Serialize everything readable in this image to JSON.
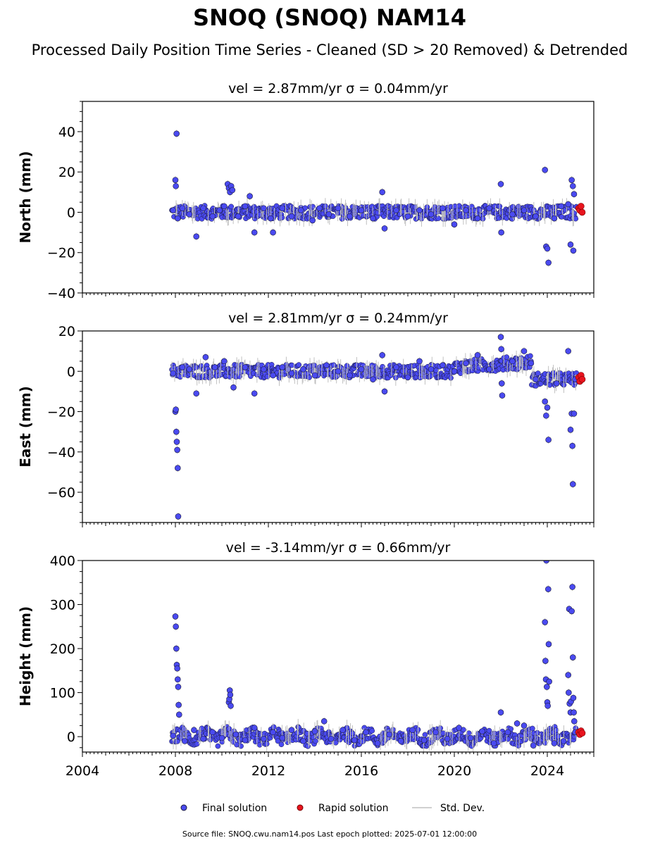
{
  "page": {
    "title": "SNOQ (SNOQ) NAM14",
    "subtitle": "Processed Daily Position Time Series - Cleaned (SD > 20 Removed) & Detrended",
    "source_prefix": "Source file: ",
    "source_file": "SNOQ.cwu.nam14.pos",
    "last_epoch_prefix": "Last epoch plotted: ",
    "last_epoch": "2025-07-01 12:00:00"
  },
  "colors": {
    "final": "#4a4af0",
    "rapid": "#e8141e",
    "stddev": "#c0c0c0",
    "edge": "#1a1a3a"
  },
  "chart_data": [
    {
      "type": "scatter",
      "id": "north",
      "panel_title": "vel = 2.87mm/yr   σ = 0.04mm/yr",
      "ylabel": "North (mm)",
      "xlim": [
        2004,
        2026
      ],
      "ylim": [
        -40,
        55
      ],
      "yticks": [
        -40,
        -20,
        0,
        20,
        40
      ],
      "ytick_labels": [
        "−40",
        "−20",
        "0",
        "20",
        "40"
      ],
      "xticks": [
        2004,
        2008,
        2012,
        2016,
        2020,
        2024
      ],
      "show_xtick_labels": false,
      "series": [
        {
          "name": "Final solution",
          "points": [
            [
              2007.9,
              1
            ],
            [
              2008.0,
              16
            ],
            [
              2008.02,
              13
            ],
            [
              2008.05,
              39
            ],
            [
              2008.1,
              -3
            ],
            [
              2008.3,
              2
            ],
            [
              2008.6,
              -1
            ],
            [
              2008.9,
              -12
            ],
            [
              2009.2,
              2
            ],
            [
              2009.6,
              -2
            ],
            [
              2009.9,
              1
            ],
            [
              2010.1,
              3
            ],
            [
              2010.25,
              14
            ],
            [
              2010.3,
              12
            ],
            [
              2010.35,
              10
            ],
            [
              2010.4,
              13
            ],
            [
              2010.45,
              11
            ],
            [
              2010.7,
              -2
            ],
            [
              2011.0,
              3
            ],
            [
              2011.2,
              8
            ],
            [
              2011.4,
              -10
            ],
            [
              2011.8,
              2
            ],
            [
              2012.1,
              -3
            ],
            [
              2012.2,
              -10
            ],
            [
              2012.6,
              2
            ],
            [
              2013.0,
              -2
            ],
            [
              2013.4,
              1
            ],
            [
              2013.9,
              -4
            ],
            [
              2014.2,
              2
            ],
            [
              2014.6,
              -1
            ],
            [
              2015.0,
              2
            ],
            [
              2015.5,
              -2
            ],
            [
              2016.0,
              1
            ],
            [
              2016.5,
              -3
            ],
            [
              2016.9,
              10
            ],
            [
              2017.0,
              -8
            ],
            [
              2017.5,
              1
            ],
            [
              2018.0,
              -2
            ],
            [
              2018.5,
              1
            ],
            [
              2019.0,
              -1
            ],
            [
              2019.5,
              2
            ],
            [
              2020.0,
              -6
            ],
            [
              2020.5,
              1
            ],
            [
              2021.0,
              -3
            ],
            [
              2021.5,
              2
            ],
            [
              2022.0,
              14
            ],
            [
              2022.02,
              -10
            ],
            [
              2022.5,
              -1
            ],
            [
              2023.0,
              1
            ],
            [
              2023.5,
              -2
            ],
            [
              2023.9,
              21
            ],
            [
              2023.95,
              -17
            ],
            [
              2024.0,
              -18
            ],
            [
              2024.05,
              -25
            ],
            [
              2024.3,
              -3
            ],
            [
              2024.6,
              3
            ],
            [
              2024.9,
              4
            ],
            [
              2025.0,
              -16
            ],
            [
              2025.05,
              16
            ],
            [
              2025.1,
              13
            ],
            [
              2025.12,
              -19
            ],
            [
              2025.15,
              9
            ]
          ]
        },
        {
          "name": "Rapid solution",
          "points": [
            [
              2025.35,
              2
            ],
            [
              2025.4,
              1
            ],
            [
              2025.45,
              3
            ],
            [
              2025.5,
              0
            ]
          ]
        }
      ]
    },
    {
      "type": "scatter",
      "id": "east",
      "panel_title": "vel = 2.81mm/yr   σ = 0.24mm/yr",
      "ylabel": "East (mm)",
      "xlim": [
        2004,
        2026
      ],
      "ylim": [
        -75,
        20
      ],
      "yticks": [
        -60,
        -40,
        -20,
        0,
        20
      ],
      "ytick_labels": [
        "−60",
        "−40",
        "−20",
        "0",
        "20"
      ],
      "xticks": [
        2004,
        2008,
        2012,
        2016,
        2020,
        2024
      ],
      "show_xtick_labels": false,
      "series": [
        {
          "name": "Final solution",
          "points": [
            [
              2007.9,
              -1
            ],
            [
              2008.0,
              -20
            ],
            [
              2008.02,
              -19
            ],
            [
              2008.04,
              -30
            ],
            [
              2008.06,
              -35
            ],
            [
              2008.08,
              -39
            ],
            [
              2008.1,
              -48
            ],
            [
              2008.12,
              -72
            ],
            [
              2008.3,
              2
            ],
            [
              2008.6,
              1
            ],
            [
              2008.9,
              -11
            ],
            [
              2009.3,
              7
            ],
            [
              2009.7,
              2
            ],
            [
              2010.1,
              5
            ],
            [
              2010.5,
              -8
            ],
            [
              2011.0,
              2
            ],
            [
              2011.4,
              -11
            ],
            [
              2011.8,
              1
            ],
            [
              2012.2,
              -2
            ],
            [
              2012.6,
              2
            ],
            [
              2013.0,
              -1
            ],
            [
              2013.5,
              1
            ],
            [
              2014.0,
              -2
            ],
            [
              2014.5,
              3
            ],
            [
              2015.0,
              0
            ],
            [
              2015.5,
              -2
            ],
            [
              2016.0,
              1
            ],
            [
              2016.5,
              -4
            ],
            [
              2016.9,
              8
            ],
            [
              2017.0,
              -10
            ],
            [
              2017.5,
              2
            ],
            [
              2018.0,
              -3
            ],
            [
              2018.5,
              5
            ],
            [
              2019.0,
              1
            ],
            [
              2019.5,
              3
            ],
            [
              2020.0,
              0
            ],
            [
              2020.5,
              4
            ],
            [
              2021.0,
              8
            ],
            [
              2021.5,
              1
            ],
            [
              2022.0,
              17
            ],
            [
              2022.02,
              11
            ],
            [
              2022.04,
              -6
            ],
            [
              2022.06,
              -12
            ],
            [
              2022.5,
              5
            ],
            [
              2023.0,
              10
            ],
            [
              2023.3,
              4
            ],
            [
              2023.5,
              -4
            ],
            [
              2023.9,
              -15
            ],
            [
              2023.95,
              -22
            ],
            [
              2024.0,
              -18
            ],
            [
              2024.05,
              -34
            ],
            [
              2024.4,
              -6
            ],
            [
              2024.9,
              10
            ],
            [
              2025.0,
              -29
            ],
            [
              2025.05,
              -21
            ],
            [
              2025.08,
              -37
            ],
            [
              2025.1,
              -56
            ],
            [
              2025.15,
              -21
            ],
            [
              2025.2,
              -4
            ]
          ]
        },
        {
          "name": "Rapid solution",
          "points": [
            [
              2025.35,
              -3
            ],
            [
              2025.4,
              -5
            ],
            [
              2025.45,
              -2
            ],
            [
              2025.5,
              -4
            ]
          ]
        }
      ]
    },
    {
      "type": "scatter",
      "id": "height",
      "panel_title": "vel = -3.14mm/yr   σ = 0.66mm/yr",
      "ylabel": "Height (mm)",
      "xlim": [
        2004,
        2026
      ],
      "ylim": [
        -35,
        400
      ],
      "yticks": [
        0,
        100,
        200,
        300,
        400
      ],
      "ytick_labels": [
        "0",
        "100",
        "200",
        "300",
        "400"
      ],
      "xticks": [
        2004,
        2008,
        2012,
        2016,
        2020,
        2024
      ],
      "xtick_labels": [
        "2004",
        "2008",
        "2012",
        "2016",
        "2020",
        "2024"
      ],
      "show_xtick_labels": true,
      "series": [
        {
          "name": "Final solution",
          "points": [
            [
              2007.9,
              2
            ],
            [
              2008.0,
              273
            ],
            [
              2008.02,
              250
            ],
            [
              2008.04,
              200
            ],
            [
              2008.06,
              163
            ],
            [
              2008.08,
              155
            ],
            [
              2008.1,
              130
            ],
            [
              2008.12,
              113
            ],
            [
              2008.14,
              72
            ],
            [
              2008.16,
              50
            ],
            [
              2008.4,
              -10
            ],
            [
              2008.8,
              15
            ],
            [
              2009.2,
              -5
            ],
            [
              2009.6,
              10
            ],
            [
              2010.0,
              -3
            ],
            [
              2010.3,
              78
            ],
            [
              2010.32,
              85
            ],
            [
              2010.34,
              105
            ],
            [
              2010.36,
              95
            ],
            [
              2010.38,
              70
            ],
            [
              2010.6,
              5
            ],
            [
              2011.0,
              -8
            ],
            [
              2011.4,
              20
            ],
            [
              2011.8,
              -5
            ],
            [
              2012.2,
              10
            ],
            [
              2012.6,
              -3
            ],
            [
              2013.0,
              15
            ],
            [
              2013.5,
              -10
            ],
            [
              2014.0,
              12
            ],
            [
              2014.4,
              35
            ],
            [
              2014.7,
              -5
            ],
            [
              2015.2,
              15
            ],
            [
              2015.7,
              -8
            ],
            [
              2016.2,
              10
            ],
            [
              2016.7,
              -15
            ],
            [
              2017.2,
              5
            ],
            [
              2017.7,
              -10
            ],
            [
              2018.2,
              15
            ],
            [
              2018.7,
              -8
            ],
            [
              2019.2,
              10
            ],
            [
              2019.7,
              -5
            ],
            [
              2020.2,
              20
            ],
            [
              2020.7,
              -3
            ],
            [
              2021.2,
              12
            ],
            [
              2021.7,
              -15
            ],
            [
              2022.0,
              55
            ],
            [
              2022.3,
              10
            ],
            [
              2022.7,
              30
            ],
            [
              2023.0,
              25
            ],
            [
              2023.4,
              -20
            ],
            [
              2023.9,
              260
            ],
            [
              2023.92,
              172
            ],
            [
              2023.94,
              130
            ],
            [
              2023.96,
              400
            ],
            [
              2023.98,
              113
            ],
            [
              2024.0,
              78
            ],
            [
              2024.02,
              70
            ],
            [
              2024.04,
              335
            ],
            [
              2024.06,
              210
            ],
            [
              2024.08,
              125
            ],
            [
              2024.3,
              -15
            ],
            [
              2024.7,
              -10
            ],
            [
              2024.9,
              140
            ],
            [
              2024.92,
              100
            ],
            [
              2024.94,
              290
            ],
            [
              2024.96,
              75
            ],
            [
              2025.0,
              55
            ],
            [
              2025.02,
              80
            ],
            [
              2025.05,
              285
            ],
            [
              2025.08,
              340
            ],
            [
              2025.1,
              180
            ],
            [
              2025.12,
              88
            ],
            [
              2025.14,
              55
            ],
            [
              2025.16,
              35
            ],
            [
              2025.2,
              10
            ]
          ]
        },
        {
          "name": "Rapid solution",
          "points": [
            [
              2025.35,
              10
            ],
            [
              2025.4,
              5
            ],
            [
              2025.45,
              13
            ],
            [
              2025.5,
              8
            ]
          ]
        }
      ]
    }
  ],
  "legend": {
    "items": [
      {
        "label": "Final solution",
        "kind": "marker",
        "color_key": "final"
      },
      {
        "label": "Rapid solution",
        "kind": "marker",
        "color_key": "rapid"
      },
      {
        "label": "Std. Dev.",
        "kind": "line",
        "color_key": "stddev"
      }
    ]
  }
}
